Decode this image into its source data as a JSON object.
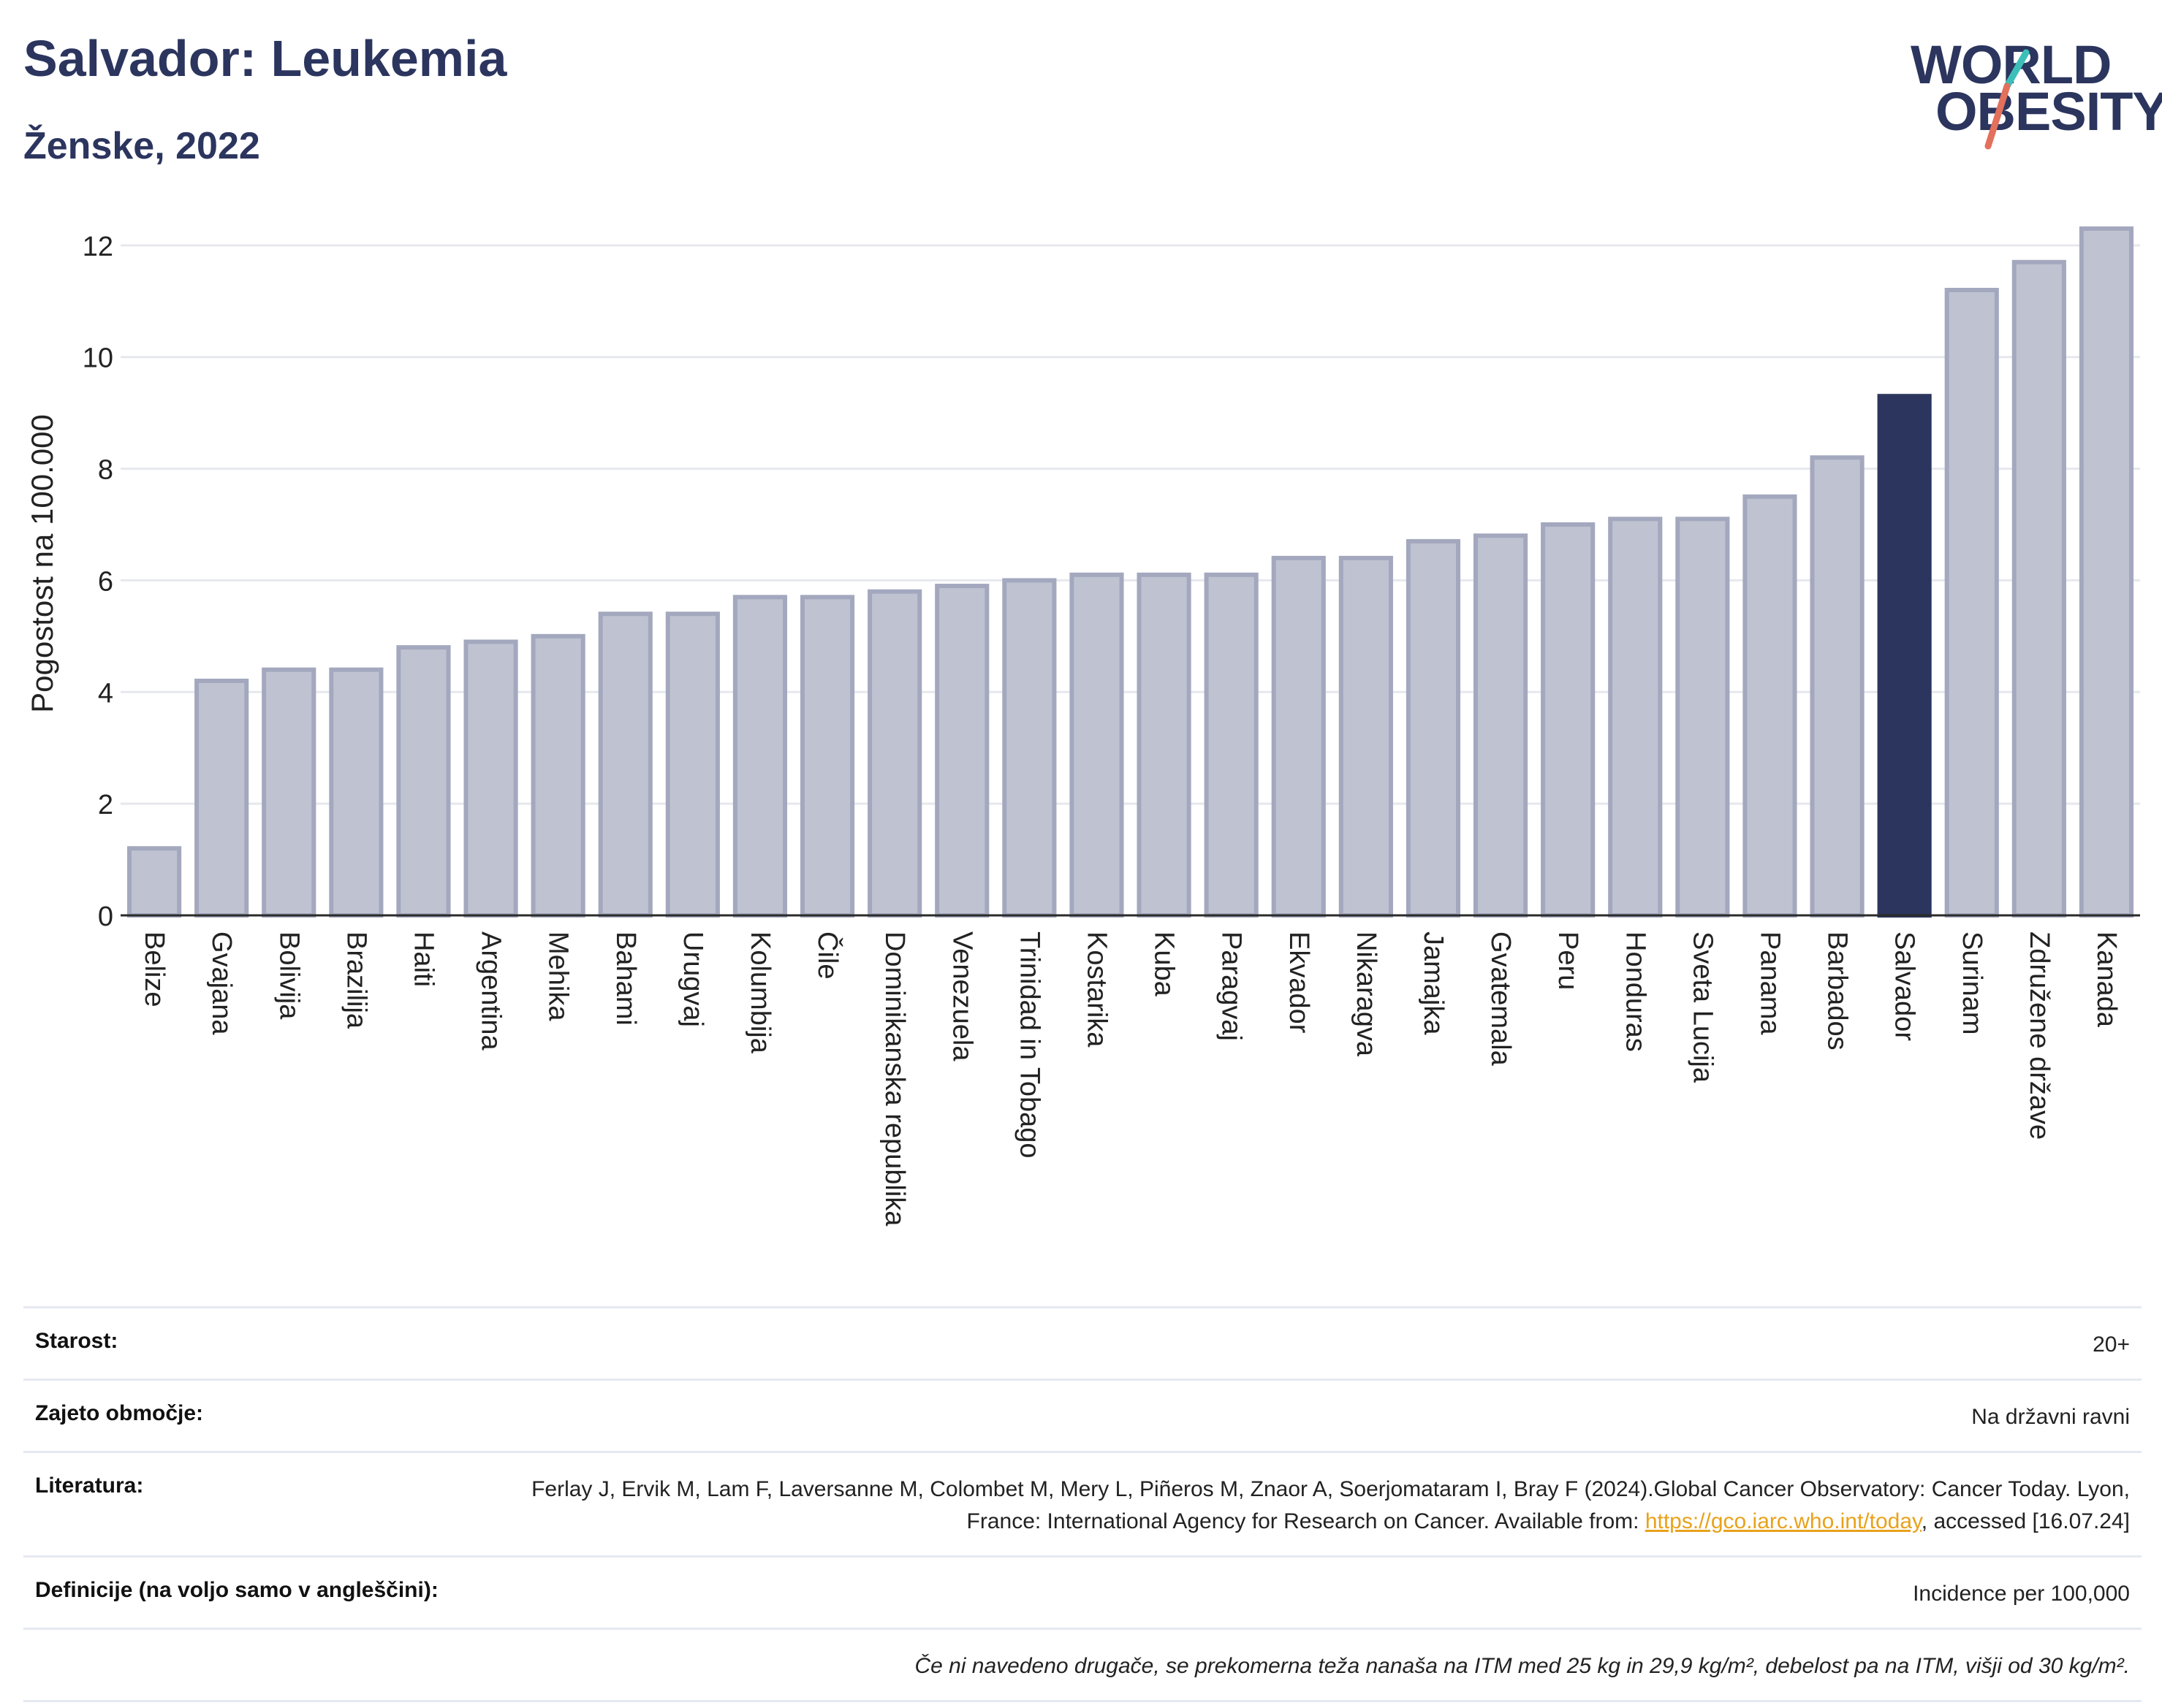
{
  "header": {
    "title": "Salvador: Leukemia",
    "subtitle": "Ženske, 2022"
  },
  "logo": {
    "line1": "WORLD",
    "line2": "OBESITY",
    "slash_colors": [
      "#3dbfb9",
      "#e2705c"
    ]
  },
  "colors": {
    "bar": "#bfc3d1",
    "bar_border": "#a3a8be",
    "highlight": "#2b355e",
    "text": "#2b355e"
  },
  "chart_data": {
    "type": "bar",
    "title": "Salvador: Leukemia",
    "subtitle": "Ženske, 2022",
    "ylabel": "Pogostost na 100.000",
    "ylim": [
      0,
      12.6
    ],
    "yticks": [
      0,
      2,
      4,
      6,
      8,
      10,
      12
    ],
    "grid": true,
    "highlight": "Salvador",
    "categories": [
      "Belize",
      "Gvajana",
      "Bolivija",
      "Brazilija",
      "Haiti",
      "Argentina",
      "Mehika",
      "Bahami",
      "Urugvaj",
      "Kolumbija",
      "Čile",
      "Dominikanska republika",
      "Venezuela",
      "Trinidad in Tobago",
      "Kostarika",
      "Kuba",
      "Paragvaj",
      "Ekvador",
      "Nikaragva",
      "Jamajka",
      "Gvatemala",
      "Peru",
      "Honduras",
      "Sveta Lucija",
      "Panama",
      "Barbados",
      "Salvador",
      "Surinam",
      "Združene države",
      "Kanada"
    ],
    "values": [
      1.2,
      4.2,
      4.4,
      4.4,
      4.8,
      4.9,
      5.0,
      5.4,
      5.4,
      5.7,
      5.7,
      5.8,
      5.9,
      6.0,
      6.1,
      6.1,
      6.1,
      6.4,
      6.4,
      6.7,
      6.8,
      7.0,
      7.1,
      7.1,
      7.5,
      8.2,
      9.3,
      11.2,
      11.7,
      12.3
    ]
  },
  "meta": {
    "rows": [
      {
        "label": "Starost:",
        "value": "20+"
      },
      {
        "label": "Zajeto območje:",
        "value": "Na državni ravni"
      },
      {
        "label": "Literatura:",
        "value_before": "Ferlay J, Ervik M, Lam F, Laversanne M, Colombet M, Mery L, Piñeros M, Znaor A, Soerjomataram I, Bray F (2024).Global Cancer Observatory: Cancer Today. Lyon, France: International Agency for Research on Cancer. Available from: ",
        "link": "https://gco.iarc.who.int/today",
        "value_after": ", accessed [16.07.24]"
      },
      {
        "label": "Definicije (na voljo samo v angleščini):",
        "value": "Incidence per 100,000"
      }
    ],
    "note": "Če ni navedeno drugače, se prekomerna teža nanaša na ITM med 25 kg in 29,9 kg/m², debelost pa na ITM, višji od 30 kg/m²."
  }
}
